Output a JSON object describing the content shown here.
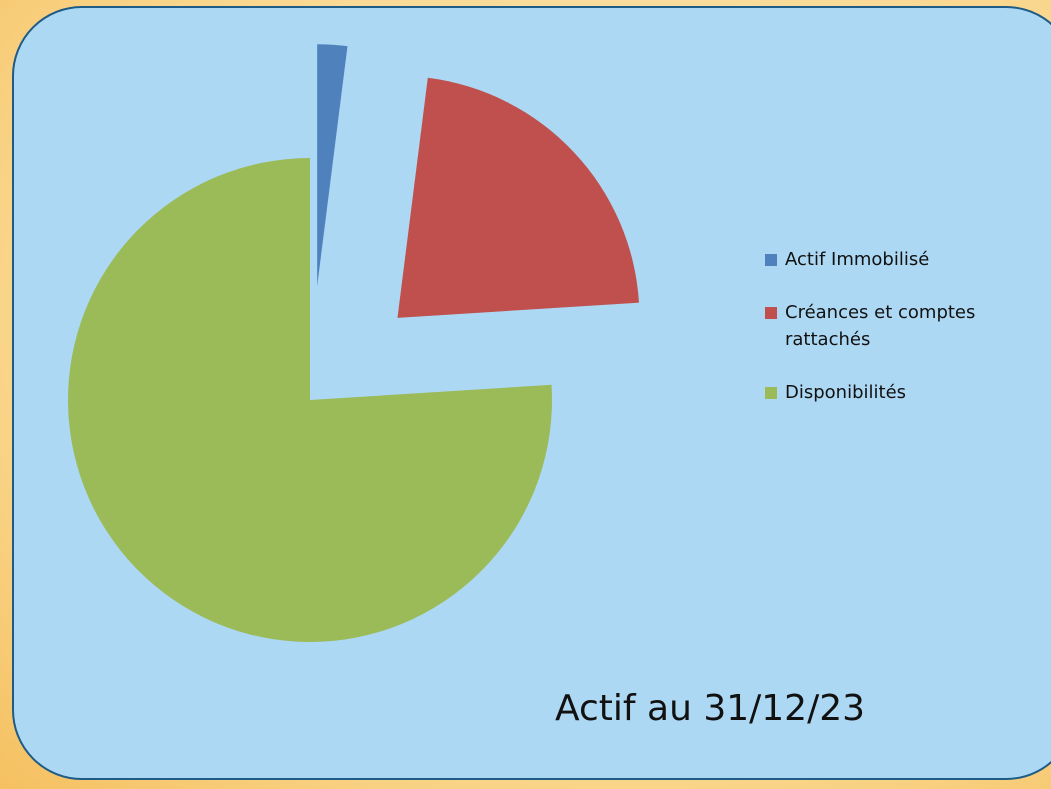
{
  "chart_data": {
    "type": "pie",
    "title": "Actif au 31/12/23",
    "categories": [
      "Actif Immobilisé",
      "Créances et comptes rattachés",
      "Disponibilités"
    ],
    "values": [
      2,
      22,
      76
    ],
    "colors": [
      "#4f81bd",
      "#c0504d",
      "#9bbb59"
    ],
    "legend": "right"
  }
}
